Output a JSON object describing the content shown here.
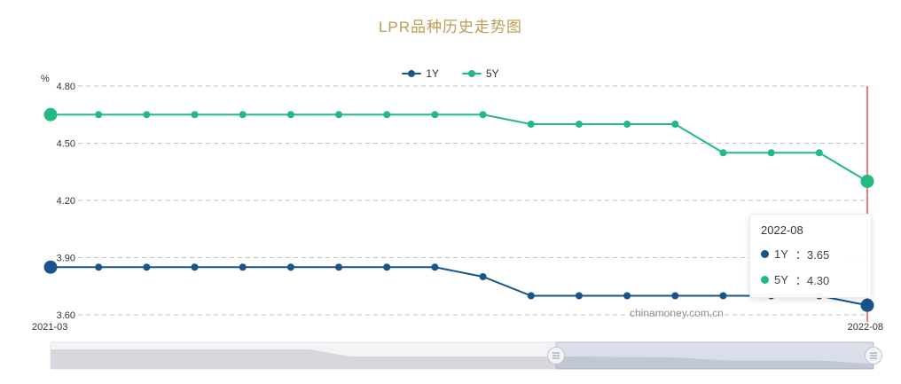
{
  "page": {
    "watermark": "chinamoney.com.cn"
  },
  "tooltip": {
    "date": "2022-08",
    "rows": [
      {
        "name": "1Y",
        "sep": "：",
        "value": "3.65"
      },
      {
        "name": "5Y",
        "sep": "：",
        "value": "4.30"
      }
    ]
  },
  "chart_data": {
    "type": "line",
    "title": "LPR品种历史走势图",
    "xlabel": "",
    "ylabel": "%",
    "ylim": [
      3.6,
      4.8
    ],
    "ytick_labels": [
      "4.80",
      "4.50",
      "4.20",
      "3.90",
      "3.60"
    ],
    "x_axis_labels": [
      "2021-03",
      "2022-08"
    ],
    "grid": "dashed-horizontal",
    "legend_position": "top-center",
    "x": [
      "2021-03",
      "2021-04",
      "2021-05",
      "2021-06",
      "2021-07",
      "2021-08",
      "2021-09",
      "2021-10",
      "2021-11",
      "2021-12",
      "2022-01",
      "2022-02",
      "2022-03",
      "2022-04",
      "2022-05",
      "2022-06",
      "2022-07",
      "2022-08"
    ],
    "series": [
      {
        "name": "1Y",
        "color": "#17548a",
        "values": [
          3.85,
          3.85,
          3.85,
          3.85,
          3.85,
          3.85,
          3.85,
          3.85,
          3.85,
          3.8,
          3.7,
          3.7,
          3.7,
          3.7,
          3.7,
          3.7,
          3.7,
          3.65
        ]
      },
      {
        "name": "5Y",
        "color": "#25b982",
        "values": [
          4.65,
          4.65,
          4.65,
          4.65,
          4.65,
          4.65,
          4.65,
          4.65,
          4.65,
          4.65,
          4.6,
          4.6,
          4.6,
          4.6,
          4.45,
          4.45,
          4.45,
          4.3
        ]
      }
    ],
    "highlight": {
      "x": "2022-08",
      "crosshair_color": "#f03030"
    }
  }
}
